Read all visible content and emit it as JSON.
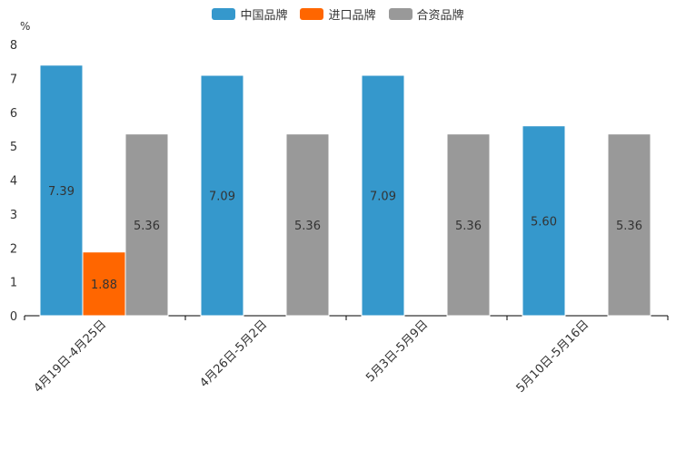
{
  "chart_data": {
    "type": "bar",
    "unit_label": "%",
    "categories": [
      "4月19日-4月25日",
      "4月26日-5月2日",
      "5月3日-5月9日",
      "5月10日-5月16日"
    ],
    "series": [
      {
        "name": "中国品牌",
        "color": "#3598cc",
        "values": [
          7.39,
          7.09,
          7.09,
          5.6
        ]
      },
      {
        "name": "进口品牌",
        "color": "#ff6600",
        "values": [
          1.88,
          null,
          null,
          null
        ]
      },
      {
        "name": "合资品牌",
        "color": "#999999",
        "values": [
          5.36,
          5.36,
          5.36,
          5.36
        ]
      }
    ],
    "ylim": [
      0,
      8
    ],
    "yticks": [
      0,
      1,
      2,
      3,
      4,
      5,
      6,
      7,
      8
    ],
    "legend_position": "top-center"
  }
}
